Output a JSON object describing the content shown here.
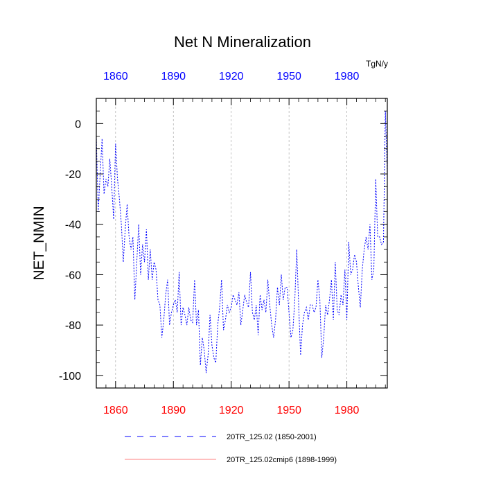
{
  "chart_data": {
    "type": "line",
    "title": "Net N Mineralization",
    "units": "TgN/y",
    "ylabel": "NET_NMIN",
    "xlabel": "",
    "xlim": [
      1850,
      2001
    ],
    "ylim": [
      -105,
      10
    ],
    "x_ticks": [
      1860,
      1890,
      1920,
      1950,
      1980
    ],
    "y_ticks": [
      0,
      -20,
      -40,
      -60,
      -80,
      -100
    ],
    "top_tick_color": "#0000ff",
    "bottom_tick_color": "#ff0000",
    "grid": "vertical dashed at major x ticks",
    "series": [
      {
        "name": "20TR_125.02 (1850-2001)",
        "color": "#0000ff",
        "dash": "dashed",
        "x": [
          1850,
          1851,
          1852,
          1853,
          1854,
          1855,
          1856,
          1857,
          1858,
          1859,
          1860,
          1861,
          1862,
          1863,
          1864,
          1865,
          1866,
          1867,
          1868,
          1869,
          1870,
          1871,
          1872,
          1873,
          1874,
          1875,
          1876,
          1877,
          1878,
          1879,
          1880,
          1881,
          1882,
          1883,
          1884,
          1885,
          1886,
          1887,
          1888,
          1889,
          1890,
          1891,
          1892,
          1893,
          1894,
          1895,
          1896,
          1897,
          1898,
          1899,
          1900,
          1901,
          1902,
          1903,
          1904,
          1905,
          1906,
          1907,
          1908,
          1909,
          1910,
          1911,
          1912,
          1913,
          1914,
          1915,
          1916,
          1917,
          1918,
          1919,
          1920,
          1921,
          1922,
          1923,
          1924,
          1925,
          1926,
          1927,
          1928,
          1929,
          1930,
          1931,
          1932,
          1933,
          1934,
          1935,
          1936,
          1937,
          1938,
          1939,
          1940,
          1941,
          1942,
          1943,
          1944,
          1945,
          1946,
          1947,
          1948,
          1949,
          1950,
          1951,
          1952,
          1953,
          1954,
          1955,
          1956,
          1957,
          1958,
          1959,
          1960,
          1961,
          1962,
          1963,
          1964,
          1965,
          1966,
          1967,
          1968,
          1969,
          1970,
          1971,
          1972,
          1973,
          1974,
          1975,
          1976,
          1977,
          1978,
          1979,
          1980,
          1981,
          1982,
          1983,
          1984,
          1985,
          1986,
          1987,
          1988,
          1989,
          1990,
          1991,
          1992,
          1993,
          1994,
          1995,
          1996,
          1997,
          1998,
          1999,
          2000,
          2001
        ],
        "values": [
          -5,
          -35,
          -20,
          -6,
          -28,
          -22,
          -25,
          -14,
          -25,
          -38,
          -8,
          -22,
          -30,
          -40,
          -55,
          -42,
          -32,
          -45,
          -50,
          -45,
          -70,
          -55,
          -40,
          -60,
          -48,
          -55,
          -42,
          -62,
          -50,
          -62,
          -55,
          -58,
          -70,
          -72,
          -85,
          -78,
          -68,
          -62,
          -80,
          -75,
          -72,
          -70,
          -75,
          -59,
          -80,
          -73,
          -76,
          -80,
          -73,
          -78,
          -79,
          -62,
          -80,
          -74,
          -96,
          -85,
          -90,
          -99,
          -92,
          -76,
          -88,
          -93,
          -95,
          -80,
          -73,
          -62,
          -82,
          -78,
          -72,
          -75,
          -73,
          -68,
          -70,
          -72,
          -67,
          -80,
          -74,
          -68,
          -71,
          -73,
          -59,
          -75,
          -78,
          -72,
          -84,
          -68,
          -74,
          -70,
          -75,
          -62,
          -72,
          -80,
          -85,
          -78,
          -65,
          -72,
          -60,
          -70,
          -65,
          -65,
          -75,
          -85,
          -82,
          -70,
          -50,
          -72,
          -92,
          -80,
          -75,
          -73,
          -78,
          -72,
          -72,
          -75,
          -73,
          -62,
          -70,
          -93,
          -85,
          -72,
          -76,
          -70,
          -62,
          -78,
          -55,
          -74,
          -76,
          -68,
          -72,
          -58,
          -78,
          -47,
          -60,
          -58,
          -52,
          -55,
          -65,
          -73,
          -58,
          -50,
          -45,
          -50,
          -40,
          -62,
          -58,
          -22,
          -45,
          -45,
          -48,
          -47,
          5,
          -20
        ]
      },
      {
        "name": "20TR_125.02cmip6 (1898-1999)",
        "color": "#ff0000",
        "dash": "solid",
        "x": [],
        "values": []
      }
    ],
    "legend": [
      {
        "label": "20TR_125.02 (1850-2001)",
        "color": "#0000ff",
        "dash": "dashed"
      },
      {
        "label": "20TR_125.02cmip6 (1898-1999)",
        "color": "#ff0000",
        "dash": "solid"
      }
    ]
  }
}
